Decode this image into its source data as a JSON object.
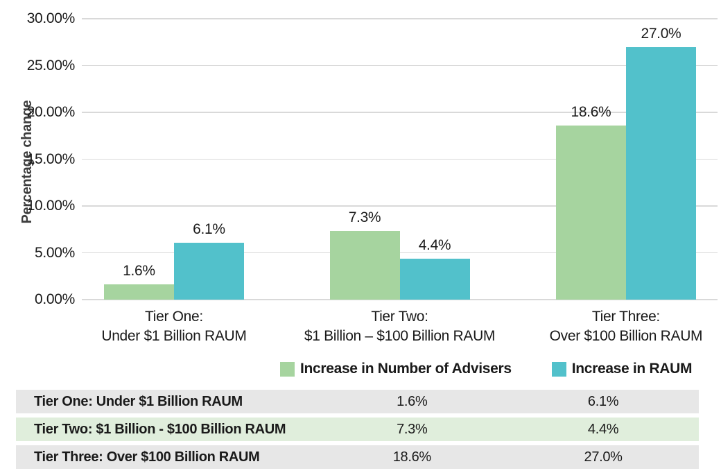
{
  "chart_data": {
    "type": "bar",
    "title": "",
    "xlabel": "",
    "ylabel": "Percentage change",
    "ylim": [
      0,
      30
    ],
    "grid": true,
    "legend_position": "bottom",
    "ytick_values": [
      30,
      25,
      20,
      15,
      10,
      5,
      0
    ],
    "ytick_labels": [
      "30.00%",
      "25.00%",
      "20.00%",
      "15.00%",
      "10.00%",
      "5.00%",
      "0.00%"
    ],
    "categories": [
      {
        "line1": "Tier One:",
        "line2": "Under $1 Billion RAUM"
      },
      {
        "line1": "Tier Two:",
        "line2": "$1 Billion – $100 Billion RAUM"
      },
      {
        "line1": "Tier Three:",
        "line2": "Over $100 Billion RAUM"
      }
    ],
    "series": [
      {
        "name": "Increase in Number of Advisers",
        "color": "#A6D49F",
        "values": [
          1.6,
          7.3,
          18.6
        ],
        "labels": [
          "1.6%",
          "7.3%",
          "18.6%"
        ]
      },
      {
        "name": "Increase in RAUM",
        "color": "#52C1CB",
        "values": [
          6.1,
          4.4,
          27.0
        ],
        "labels": [
          "6.1%",
          "4.4%",
          "27.0%"
        ]
      }
    ],
    "group_centers_pct": [
      14.5,
      50,
      85.6
    ]
  },
  "table": {
    "rows": [
      {
        "label": "Tier One: Under $1 Billion RAUM",
        "values": [
          "1.6%",
          "6.1%"
        ],
        "bg": "#E7E7E7"
      },
      {
        "label": "Tier Two: $1 Billion - $100 Billion RAUM",
        "values": [
          "7.3%",
          "4.4%"
        ],
        "bg": "#E0EEDC"
      },
      {
        "label": "Tier Three: Over $100 Billion RAUM",
        "values": [
          "18.6%",
          "27.0%"
        ],
        "bg": "#E7E7E7"
      }
    ]
  },
  "colors": {
    "series_advisers": "#A6D49F",
    "series_raum": "#52C1CB",
    "gridline": "#D9D9D9",
    "text": "#1A1A1A",
    "axis_title": "#3D3D3D",
    "table_row_gray": "#E7E7E7",
    "table_row_green": "#E0EEDC"
  }
}
